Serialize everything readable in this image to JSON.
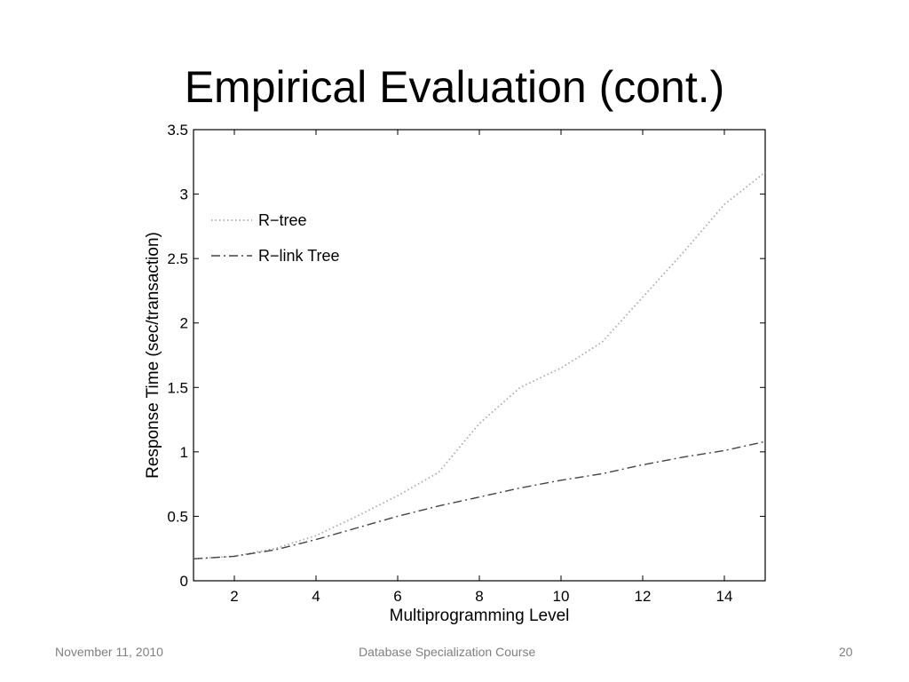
{
  "slide": {
    "title": "Empirical Evaluation (cont.)",
    "footer_date": "November 11, 2010",
    "footer_course": "Database Specialization Course",
    "page_number": "20"
  },
  "chart_data": {
    "type": "line",
    "title": "",
    "xlabel": "Multiprogramming Level",
    "ylabel": "Response Time (sec/transaction)",
    "xlim": [
      1,
      15
    ],
    "ylim": [
      0,
      3.5
    ],
    "xticks": [
      2,
      4,
      6,
      8,
      10,
      12,
      14
    ],
    "yticks": [
      0,
      0.5,
      1,
      1.5,
      2,
      2.5,
      3,
      3.5
    ],
    "ytick_labels": [
      "0",
      "0.5",
      "1",
      "1.5",
      "2",
      "2.5",
      "3",
      "3.5"
    ],
    "grid": false,
    "legend_position": "top-left",
    "x": [
      1,
      2,
      3,
      4,
      5,
      6,
      7,
      8,
      9,
      10,
      11,
      12,
      13,
      14,
      15
    ],
    "series": [
      {
        "name": "R−tree",
        "line_style": "dotted",
        "color": "#aaaaaa",
        "values": [
          0.17,
          0.19,
          0.25,
          0.35,
          0.5,
          0.66,
          0.84,
          1.22,
          1.5,
          1.65,
          1.85,
          2.2,
          2.55,
          2.92,
          3.17
        ]
      },
      {
        "name": "R−link Tree",
        "line_style": "dash-dot",
        "color": "#444444",
        "values": [
          0.17,
          0.19,
          0.24,
          0.32,
          0.41,
          0.5,
          0.58,
          0.65,
          0.72,
          0.78,
          0.83,
          0.9,
          0.96,
          1.01,
          1.08
        ]
      }
    ]
  }
}
